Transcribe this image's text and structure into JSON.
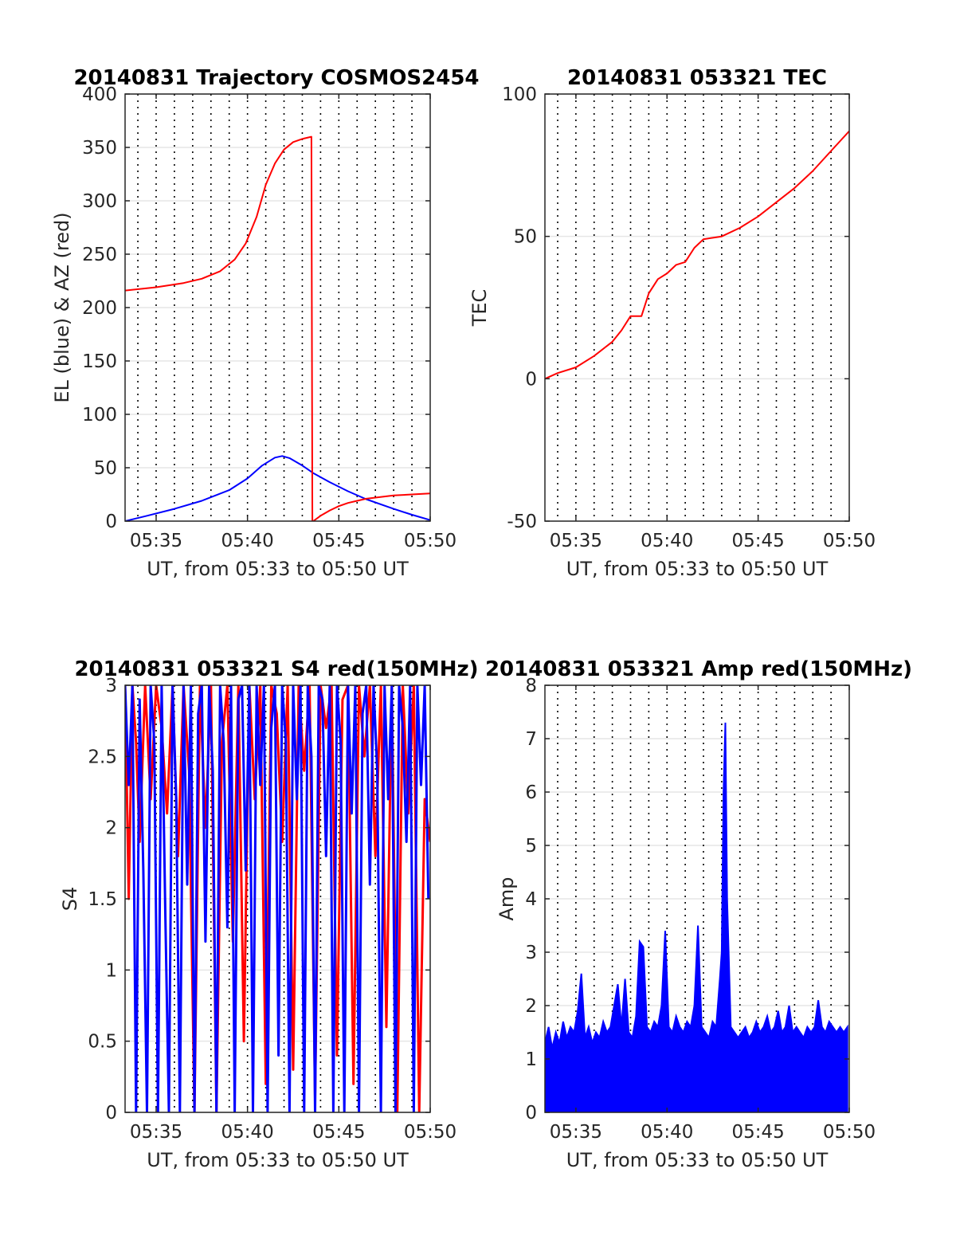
{
  "colors": {
    "red": "#ff0000",
    "blue": "#0000ff",
    "grid": "#e6e6e6",
    "frame": "#262626"
  },
  "chart_data": [
    {
      "type": "line",
      "title": "20140831 Trajectory COSMOS2454",
      "xlabel": "UT, from 05:33 to 05:50 UT",
      "ylabel": "EL (blue) & AZ (red)",
      "xlim": [
        33.3,
        50.0
      ],
      "ylim": [
        0,
        400
      ],
      "xticks": [
        35,
        40,
        45,
        50
      ],
      "xtick_labels": [
        "05:35",
        "05:40",
        "05:45",
        "05:50"
      ],
      "yticks": [
        0,
        50,
        100,
        150,
        200,
        250,
        300,
        350,
        400
      ],
      "ytick_labels": [
        "0",
        "50",
        "100",
        "150",
        "200",
        "250",
        "300",
        "350",
        "400"
      ],
      "vlines_minutes": [
        34,
        35,
        36,
        37,
        38,
        39,
        40,
        41,
        42,
        43,
        44,
        45,
        46,
        47,
        48,
        49
      ],
      "grid": true,
      "series": [
        {
          "color": "blue",
          "x": [
            33.3,
            34.5,
            36,
            37.5,
            39,
            40,
            40.8,
            41.5,
            41.9,
            42.3,
            43,
            43.6,
            44.5,
            45.5,
            46.5,
            48,
            49,
            50
          ],
          "y": [
            0,
            5,
            11.5,
            19,
            29,
            40,
            52,
            59.5,
            61,
            59,
            52,
            45,
            36.5,
            28,
            20.5,
            11.5,
            6,
            1
          ]
        },
        {
          "color": "red",
          "x": [
            33.3,
            35,
            36.5,
            37.5,
            38.5,
            39.3,
            39.9,
            40.5,
            41,
            41.5,
            42,
            42.5,
            43,
            43.5,
            43.55,
            43.6,
            44,
            44.5,
            45,
            45.5,
            46,
            46.5,
            47,
            48,
            49,
            50
          ],
          "y": [
            216,
            219,
            223,
            227,
            234,
            245,
            260,
            285,
            315,
            335,
            348,
            355,
            358,
            360,
            0,
            0,
            5,
            10,
            14,
            17,
            19,
            21,
            22,
            24,
            25,
            26
          ]
        }
      ]
    },
    {
      "type": "line",
      "title": "20140831 053321 TEC",
      "xlabel": "UT, from 05:33 to 05:50 UT",
      "ylabel": "TEC",
      "xlim": [
        33.3,
        50.0
      ],
      "ylim": [
        -50,
        100
      ],
      "xticks": [
        35,
        40,
        45,
        50
      ],
      "xtick_labels": [
        "05:35",
        "05:40",
        "05:45",
        "05:50"
      ],
      "yticks": [
        -50,
        0,
        50,
        100
      ],
      "ytick_labels": [
        "-50",
        "0",
        "50",
        "100"
      ],
      "vlines_minutes": [
        34,
        35,
        36,
        37,
        38,
        39,
        40,
        41,
        42,
        43,
        44,
        45,
        46,
        47,
        48,
        49
      ],
      "grid": true,
      "series": [
        {
          "color": "red",
          "x": [
            33.3,
            34,
            35,
            36,
            37,
            37.5,
            38,
            38.6,
            39,
            39.5,
            40,
            40.5,
            41,
            41.5,
            42,
            43,
            44,
            45,
            46,
            47,
            48,
            49,
            50
          ],
          "y": [
            0,
            2,
            4,
            8,
            13,
            17,
            22,
            22,
            30,
            35,
            37,
            40,
            41,
            46,
            49,
            50,
            53,
            57,
            62,
            67,
            73,
            80,
            87
          ]
        }
      ]
    },
    {
      "type": "line",
      "title": "20140831 053321 S4 red(150MHz)",
      "xlabel": "UT, from 05:33 to 05:50 UT",
      "ylabel": "S4",
      "xlim": [
        33.3,
        50.0
      ],
      "ylim": [
        0,
        3
      ],
      "xticks": [
        35,
        40,
        45,
        50
      ],
      "xtick_labels": [
        "05:35",
        "05:40",
        "05:45",
        "05:50"
      ],
      "yticks": [
        0,
        0.5,
        1,
        1.5,
        2,
        2.5,
        3
      ],
      "ytick_labels": [
        "0",
        "0.5",
        "1",
        "1.5",
        "2",
        "2.5",
        "3"
      ],
      "vlines_minutes": [
        34,
        35,
        36,
        37,
        38,
        39,
        40,
        41,
        42,
        43,
        44,
        45,
        46,
        47,
        48,
        49
      ],
      "grid": true,
      "series": [
        {
          "color": "red",
          "x": [
            33.3,
            33.5,
            33.7,
            33.9,
            34.1,
            34.4,
            34.7,
            35.0,
            35.3,
            35.6,
            35.9,
            36.2,
            36.5,
            36.8,
            37.1,
            37.4,
            37.7,
            38.0,
            38.3,
            38.6,
            38.9,
            39.2,
            39.5,
            39.8,
            40.1,
            40.4,
            40.7,
            41.0,
            41.3,
            41.6,
            41.9,
            42.2,
            42.5,
            42.8,
            43.1,
            43.4,
            43.7,
            44.0,
            44.3,
            44.6,
            44.9,
            45.2,
            45.5,
            45.8,
            46.1,
            46.4,
            46.7,
            47.0,
            47.3,
            47.6,
            47.9,
            48.2,
            48.5,
            48.8,
            49.1,
            49.4,
            49.7,
            50.0
          ],
          "y": [
            3,
            1.5,
            3,
            2.6,
            1.9,
            3,
            2.2,
            3,
            2.7,
            2.1,
            3,
            1.8,
            3,
            2.4,
            0,
            3,
            2.0,
            3,
            0,
            2.6,
            3,
            1.2,
            3,
            0.5,
            3,
            2.2,
            3,
            0.2,
            3,
            2.8,
            1.9,
            3,
            0.3,
            3,
            2.4,
            3,
            0.1,
            3,
            2.7,
            3,
            0.4,
            2.9,
            3,
            0.2,
            3,
            2.5,
            3,
            1.8,
            3,
            0.6,
            3,
            0,
            3,
            2.1,
            3,
            0,
            2.2,
            1.9
          ]
        },
        {
          "color": "blue",
          "x": [
            33.3,
            33.5,
            33.7,
            33.9,
            34.1,
            34.3,
            34.5,
            34.7,
            34.9,
            35.1,
            35.3,
            35.5,
            35.7,
            35.9,
            36.1,
            36.3,
            36.5,
            36.7,
            36.9,
            37.1,
            37.3,
            37.5,
            37.7,
            37.9,
            38.1,
            38.3,
            38.5,
            38.7,
            38.9,
            39.1,
            39.3,
            39.5,
            39.7,
            39.9,
            40.1,
            40.3,
            40.5,
            40.7,
            40.9,
            41.1,
            41.3,
            41.5,
            41.7,
            41.9,
            42.1,
            42.3,
            42.5,
            42.7,
            42.9,
            43.1,
            43.3,
            43.5,
            43.7,
            43.9,
            44.1,
            44.3,
            44.5,
            44.7,
            44.9,
            45.1,
            45.3,
            45.5,
            45.7,
            45.9,
            46.1,
            46.3,
            46.5,
            46.7,
            46.9,
            47.1,
            47.3,
            47.5,
            47.7,
            47.9,
            48.1,
            48.3,
            48.5,
            48.7,
            48.9,
            49.1,
            49.3,
            49.5,
            49.7,
            49.9
          ],
          "y": [
            3,
            2.3,
            3,
            0,
            2.9,
            1.7,
            0,
            3,
            2.6,
            0,
            3,
            1.4,
            0,
            3,
            2.2,
            0,
            3,
            1.6,
            3,
            0,
            2.8,
            3,
            1.2,
            3,
            2.4,
            0,
            3,
            2.6,
            1.3,
            3,
            0,
            2.9,
            3,
            1.7,
            3,
            0,
            3,
            2.3,
            3,
            0,
            2.7,
            3,
            0.4,
            3,
            2.6,
            0,
            3,
            2.2,
            3,
            0,
            3,
            2.5,
            0,
            3,
            2.9,
            1.8,
            3,
            0,
            3,
            2.6,
            0,
            3,
            2.1,
            3,
            0,
            2.8,
            3,
            1.6,
            3,
            2.4,
            0,
            3,
            2.2,
            3,
            0,
            3,
            2.7,
            1.9,
            3,
            0,
            3,
            2.3,
            3,
            1.5
          ]
        }
      ]
    },
    {
      "type": "line",
      "title": "20140831 053321 Amp red(150MHz)",
      "xlabel": "UT, from 05:33 to 05:50 UT",
      "ylabel": "Amp",
      "xlim": [
        33.3,
        50.0
      ],
      "ylim": [
        0,
        8
      ],
      "xticks": [
        35,
        40,
        45,
        50
      ],
      "xtick_labels": [
        "05:35",
        "05:40",
        "05:45",
        "05:50"
      ],
      "yticks": [
        0,
        1,
        2,
        3,
        4,
        5,
        6,
        7,
        8
      ],
      "ytick_labels": [
        "0",
        "1",
        "2",
        "3",
        "4",
        "5",
        "6",
        "7",
        "8"
      ],
      "vlines_minutes": [
        34,
        35,
        36,
        37,
        38,
        39,
        40,
        41,
        42,
        43,
        44,
        45,
        46,
        47,
        48,
        49
      ],
      "grid": true,
      "series": [
        {
          "color": "blue",
          "x": [
            33.3,
            33.5,
            33.7,
            33.9,
            34.1,
            34.3,
            34.5,
            34.7,
            34.9,
            35.1,
            35.3,
            35.5,
            35.7,
            35.9,
            36.1,
            36.3,
            36.5,
            36.7,
            36.9,
            37.1,
            37.3,
            37.5,
            37.7,
            37.9,
            38.1,
            38.3,
            38.5,
            38.7,
            38.9,
            39.1,
            39.3,
            39.5,
            39.7,
            39.9,
            40.1,
            40.3,
            40.5,
            40.7,
            40.9,
            41.1,
            41.3,
            41.5,
            41.7,
            41.9,
            42.1,
            42.3,
            42.5,
            42.7,
            42.9,
            43.0,
            43.1,
            43.2,
            43.3,
            43.5,
            43.7,
            43.9,
            44.1,
            44.3,
            44.5,
            44.7,
            44.9,
            45.1,
            45.3,
            45.5,
            45.7,
            45.9,
            46.1,
            46.3,
            46.5,
            46.7,
            46.9,
            47.1,
            47.3,
            47.5,
            47.7,
            47.9,
            48.1,
            48.3,
            48.5,
            48.7,
            48.9,
            49.1,
            49.3,
            49.5,
            49.7,
            49.9
          ],
          "y": [
            1.3,
            1.6,
            1.2,
            1.5,
            1.3,
            1.7,
            1.4,
            1.6,
            1.5,
            1.9,
            2.6,
            1.4,
            1.6,
            1.3,
            1.5,
            1.4,
            1.7,
            1.5,
            1.6,
            2.0,
            2.4,
            1.6,
            2.5,
            1.5,
            1.4,
            1.8,
            3.2,
            3.1,
            1.6,
            1.5,
            1.7,
            1.6,
            2.0,
            3.4,
            1.6,
            1.5,
            1.8,
            1.6,
            1.5,
            1.7,
            1.6,
            2.0,
            3.5,
            1.6,
            1.5,
            1.4,
            1.7,
            1.6,
            2.5,
            3.0,
            6.0,
            7.3,
            4.0,
            1.6,
            1.5,
            1.4,
            1.5,
            1.6,
            1.4,
            1.5,
            1.7,
            1.5,
            1.6,
            1.8,
            1.5,
            1.6,
            1.9,
            1.5,
            1.6,
            2.0,
            1.5,
            1.6,
            1.5,
            1.4,
            1.6,
            1.5,
            1.6,
            2.1,
            1.6,
            1.5,
            1.7,
            1.6,
            1.5,
            1.6,
            1.5,
            1.6
          ]
        }
      ]
    }
  ]
}
